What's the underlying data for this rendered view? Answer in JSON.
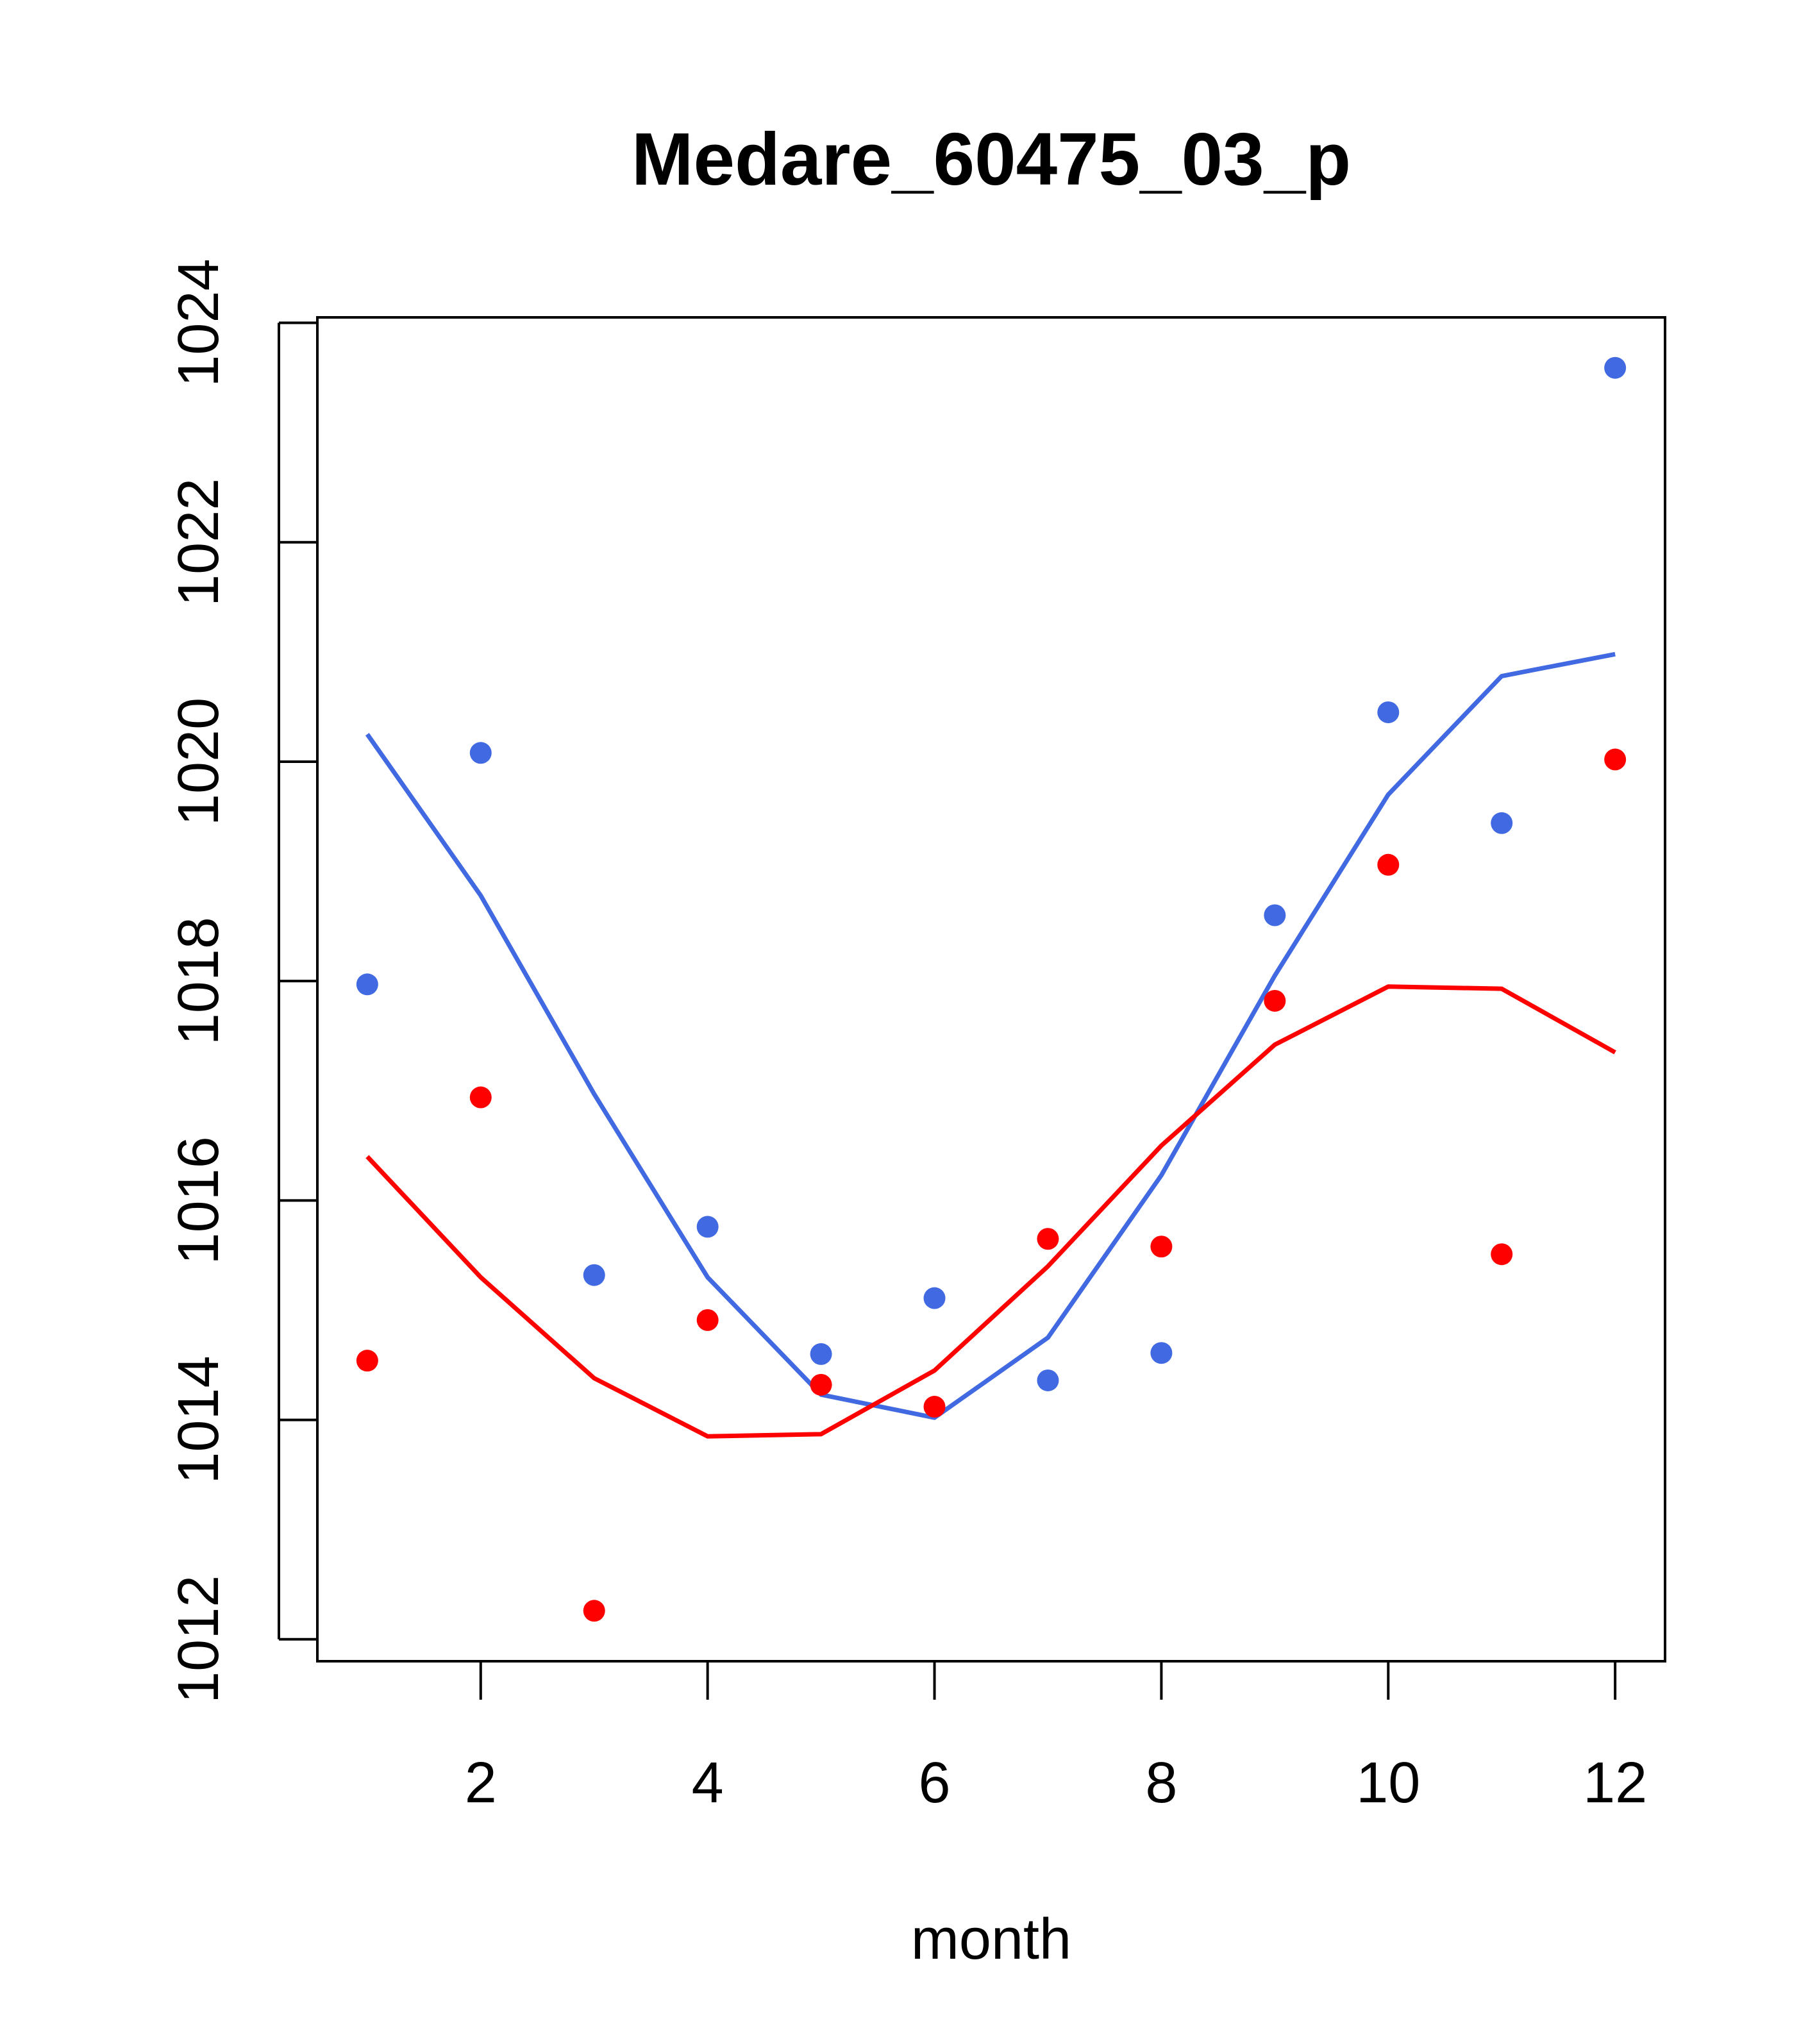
{
  "chart_data": {
    "type": "line",
    "title": "Medare_60475_03_p",
    "xlabel": "month",
    "ylabel": "",
    "xlim": [
      0.56,
      12.44
    ],
    "ylim": [
      1011.8,
      1024.05
    ],
    "xticks": [
      2,
      4,
      6,
      8,
      10,
      12
    ],
    "yticks": [
      1012,
      1014,
      1016,
      1018,
      1020,
      1022,
      1024
    ],
    "x": [
      1,
      2,
      3,
      4,
      5,
      6,
      7,
      8,
      9,
      10,
      11,
      12
    ],
    "series": [
      {
        "name": "blue points",
        "kind": "points",
        "color": "#4169e1",
        "values": [
          1017.97,
          1020.08,
          1015.32,
          1015.76,
          1014.6,
          1015.11,
          1014.36,
          1014.61,
          1018.6,
          1020.45,
          1019.44,
          1023.59
        ]
      },
      {
        "name": "red points",
        "kind": "points",
        "color": "#ff0000",
        "values": [
          1014.54,
          1016.94,
          1012.26,
          1014.91,
          1014.32,
          1014.12,
          1015.65,
          1015.58,
          1017.82,
          1019.06,
          1015.51,
          1020.02
        ]
      },
      {
        "name": "blue line",
        "kind": "line",
        "color": "#4169e1",
        "values": [
          1020.25,
          1018.78,
          1016.97,
          1015.3,
          1014.23,
          1014.02,
          1014.75,
          1016.23,
          1018.05,
          1019.7,
          1020.78,
          1020.98
        ]
      },
      {
        "name": "red line",
        "kind": "line",
        "color": "#ff0000",
        "values": [
          1016.4,
          1015.3,
          1014.38,
          1013.85,
          1013.87,
          1014.45,
          1015.4,
          1016.5,
          1017.42,
          1017.95,
          1017.93,
          1017.35
        ]
      }
    ]
  }
}
